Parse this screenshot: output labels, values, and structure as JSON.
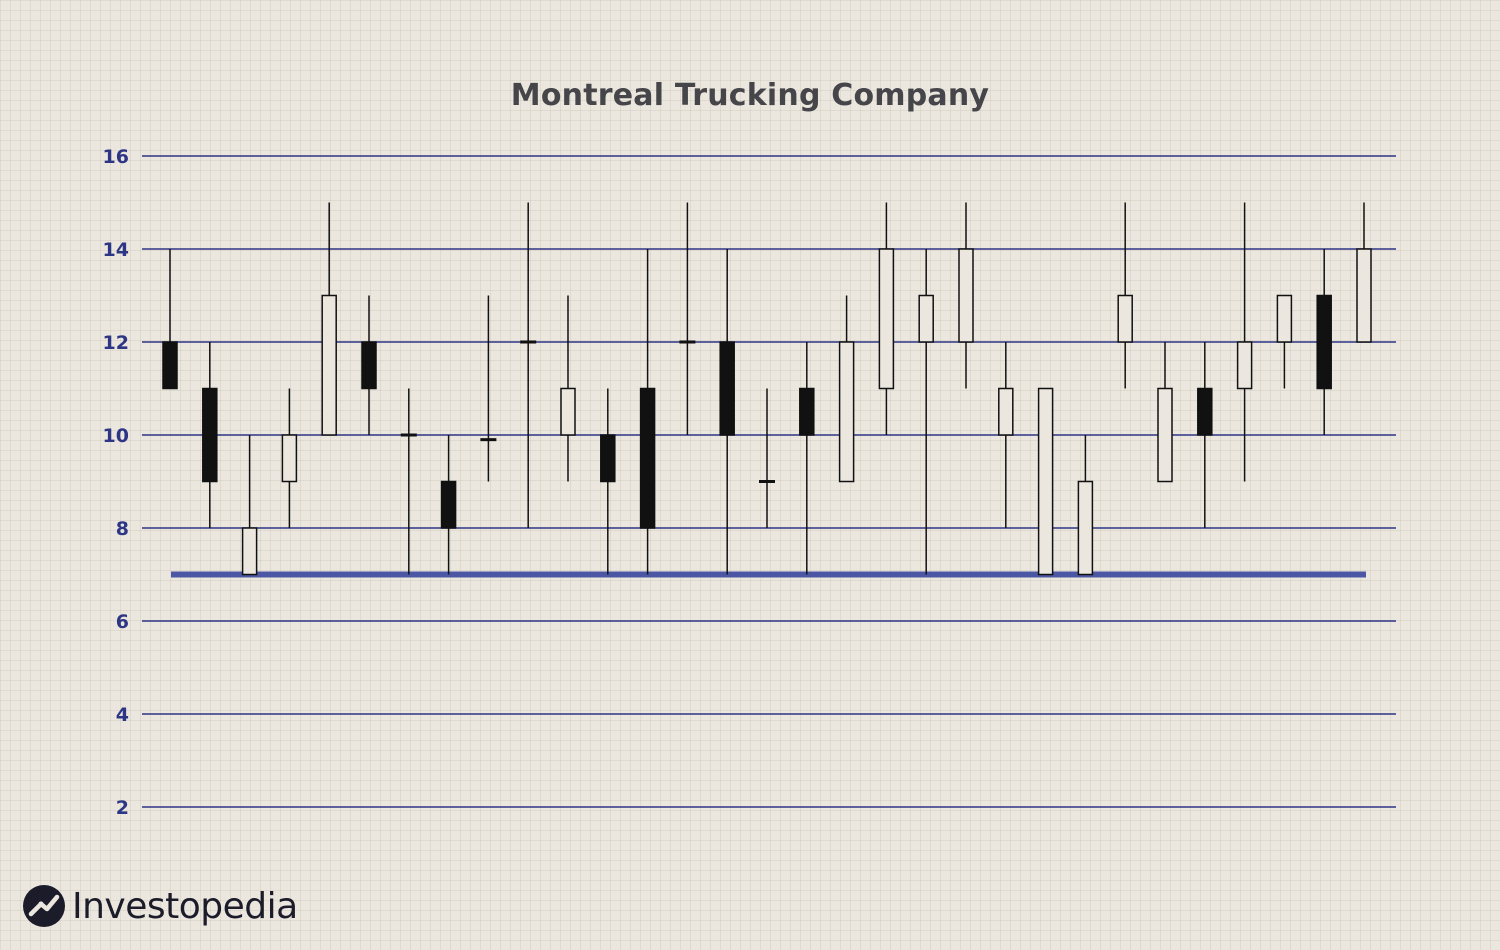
{
  "colors": {
    "gridline": "#2d3585",
    "tick_label": "#2d3585",
    "support_line": "#4b57a4",
    "candle_stroke": "#111111",
    "bearish_fill": "#111111",
    "bullish_fill": "#ebe7df",
    "brand_mark": "#1b1b2a"
  },
  "brand": {
    "name": "Investopedia",
    "icon": "investopedia-logo-icon"
  },
  "chart_data": {
    "type": "candlestick",
    "title": "Montreal Trucking Company",
    "xlabel": "",
    "ylabel": "",
    "yticks": [
      2,
      4,
      6,
      8,
      10,
      12,
      14,
      16
    ],
    "ylim": [
      2,
      16
    ],
    "grid": "horizontal",
    "support_line": {
      "value": 7
    },
    "candles": [
      {
        "open": 12,
        "close": 11,
        "high": 14,
        "low": 11
      },
      {
        "open": 11,
        "close": 9,
        "high": 12,
        "low": 8
      },
      {
        "open": 7,
        "close": 8,
        "high": 10,
        "low": 7
      },
      {
        "open": 9,
        "close": 10,
        "high": 11,
        "low": 8
      },
      {
        "open": 10,
        "close": 13,
        "high": 15,
        "low": 10
      },
      {
        "open": 12,
        "close": 11,
        "high": 13,
        "low": 10
      },
      {
        "open": 10,
        "close": 10,
        "high": 11,
        "low": 7
      },
      {
        "open": 9,
        "close": 8,
        "high": 10,
        "low": 7
      },
      {
        "open": 9.9,
        "close": 9.9,
        "high": 13,
        "low": 9
      },
      {
        "open": 12,
        "close": 12,
        "high": 15,
        "low": 8
      },
      {
        "open": 10,
        "close": 11,
        "high": 13,
        "low": 9
      },
      {
        "open": 10,
        "close": 9,
        "high": 11,
        "low": 7
      },
      {
        "open": 11,
        "close": 8,
        "high": 14,
        "low": 7
      },
      {
        "open": 12,
        "close": 12,
        "high": 15,
        "low": 10
      },
      {
        "open": 12,
        "close": 10,
        "high": 14,
        "low": 7
      },
      {
        "open": 9,
        "close": 9,
        "high": 11,
        "low": 8
      },
      {
        "open": 11,
        "close": 10,
        "high": 12,
        "low": 7
      },
      {
        "open": 9,
        "close": 12,
        "high": 13,
        "low": 9
      },
      {
        "open": 11,
        "close": 14,
        "high": 15,
        "low": 10
      },
      {
        "open": 12,
        "close": 13,
        "high": 14,
        "low": 7
      },
      {
        "open": 12,
        "close": 14,
        "high": 15,
        "low": 11
      },
      {
        "open": 10,
        "close": 11,
        "high": 12,
        "low": 8
      },
      {
        "open": 7,
        "close": 11,
        "high": 11,
        "low": 7
      },
      {
        "open": 7,
        "close": 9,
        "high": 10,
        "low": 7
      },
      {
        "open": 12,
        "close": 13,
        "high": 15,
        "low": 11
      },
      {
        "open": 9,
        "close": 11,
        "high": 12,
        "low": 9
      },
      {
        "open": 11,
        "close": 10,
        "high": 12,
        "low": 8
      },
      {
        "open": 11,
        "close": 12,
        "high": 15,
        "low": 9
      },
      {
        "open": 12,
        "close": 13,
        "high": 13,
        "low": 11
      },
      {
        "open": 13,
        "close": 11,
        "high": 14,
        "low": 10
      },
      {
        "open": 12,
        "close": 14,
        "high": 15,
        "low": 12
      }
    ]
  }
}
